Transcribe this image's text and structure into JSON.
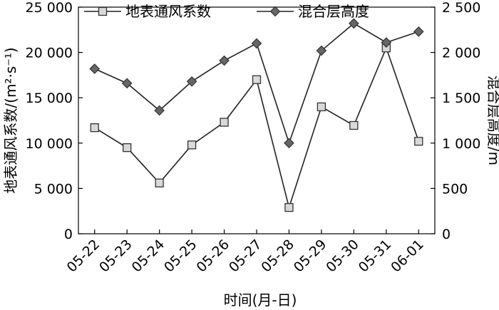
{
  "chart_data": {
    "type": "line",
    "x_label": "时间(月-日)",
    "categories": [
      "05-22",
      "05-23",
      "05-24",
      "05-25",
      "05-26",
      "05-27",
      "05-28",
      "05-29",
      "05-30",
      "05-31",
      "06-01"
    ],
    "y_left": {
      "label": "地表通风系数/(m²·s⁻¹)",
      "range": [
        0,
        25000
      ],
      "ticks": [
        0,
        5000,
        10000,
        15000,
        20000,
        25000
      ],
      "tick_labels": [
        "0",
        "5 000",
        "10 000",
        "15 000",
        "20 000",
        "25 000"
      ]
    },
    "y_right": {
      "label": "混合层高度/m",
      "range": [
        0,
        2500
      ],
      "ticks": [
        0,
        500,
        1000,
        1500,
        2000,
        2500
      ],
      "tick_labels": [
        "0",
        "500",
        "1 000",
        "1 500",
        "2 000",
        "2 500"
      ]
    },
    "series": [
      {
        "name": "地表通风系数",
        "axis": "left",
        "marker": "square",
        "values": [
          11700,
          9500,
          5600,
          9800,
          12300,
          17000,
          2900,
          14000,
          11950,
          20500,
          10200
        ]
      },
      {
        "name": "混合层高度",
        "axis": "right",
        "marker": "diamond",
        "values": [
          1820,
          1660,
          1360,
          1680,
          1910,
          2100,
          1000,
          2020,
          2320,
          2110,
          2230
        ]
      }
    ],
    "legend_position": "top-center",
    "grid": false
  }
}
